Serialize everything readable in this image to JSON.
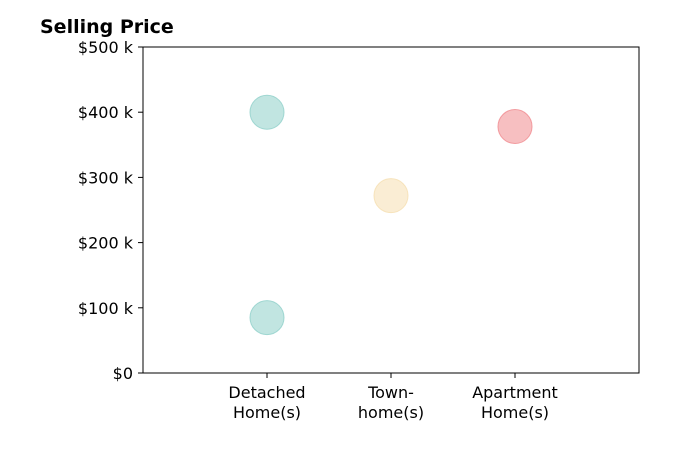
{
  "chart_data": {
    "type": "scatter",
    "title": "Selling Price",
    "xlabel": "",
    "ylabel": "",
    "categories": [
      [
        "Detached",
        "Home(s)"
      ],
      [
        "Town-",
        "home(s)"
      ],
      [
        "Apartment",
        "Home(s)"
      ]
    ],
    "points": [
      {
        "category_index": 0,
        "value": 400,
        "color": "#8ecfc9"
      },
      {
        "category_index": 0,
        "value": 85,
        "color": "#8ecfc9"
      },
      {
        "category_index": 1,
        "value": 272,
        "color": "#f5deb0"
      },
      {
        "category_index": 2,
        "value": 378,
        "color": "#f08a8e"
      }
    ],
    "ylim": [
      0,
      500
    ],
    "yticks": [
      0,
      100,
      200,
      300,
      400,
      500
    ],
    "ytick_labels": [
      "$0",
      "$100 k",
      "$200 k",
      "$300 k",
      "$400 k",
      "$500 k"
    ],
    "grid": false,
    "legend": "none",
    "marker_opacity": 0.55
  }
}
